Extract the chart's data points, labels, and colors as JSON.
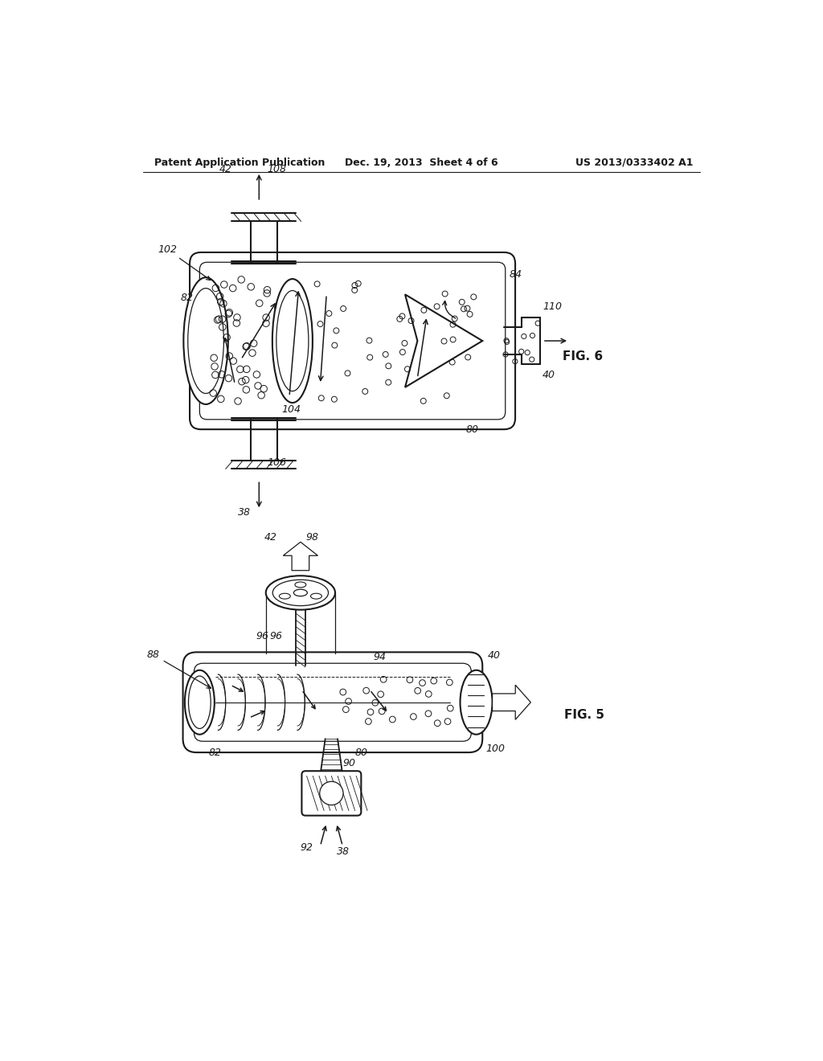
{
  "bg_color": "#ffffff",
  "line_color": "#1a1a1a",
  "header_left": "Patent Application Publication",
  "header_mid": "Dec. 19, 2013  Sheet 4 of 6",
  "header_right": "US 2013/0333402 A1",
  "fig6_label": "FIG. 6",
  "fig5_label": "FIG. 5"
}
